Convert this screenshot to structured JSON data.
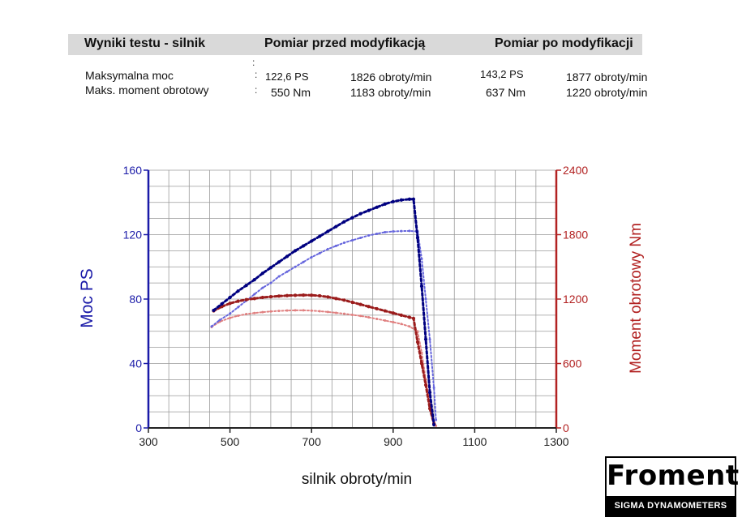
{
  "table": {
    "headers": [
      "Wyniki testu - silnik",
      "Pomiar przed modyfikacją",
      "Pomiar po modyfikacji"
    ],
    "rows": [
      {
        "label": "Maksymalna moc",
        "before_value": "122,6 PS",
        "before_rpm": "1826 obroty/min",
        "after_value": "143,2 PS",
        "after_rpm": "1877 obroty/min"
      },
      {
        "label": "Maks. moment obrotowy",
        "before_value": "550 Nm",
        "before_rpm": "1183 obroty/min",
        "after_value": "637 Nm",
        "after_rpm": "1220 obroty/min"
      }
    ]
  },
  "chart_data": {
    "type": "scatter",
    "xlabel": "silnik obroty/min",
    "ylabel": "Moc PS",
    "y2label": "Moment obrotowy Nm",
    "xlim": [
      300,
      1300
    ],
    "ylim": [
      0,
      160
    ],
    "y2lim": [
      0,
      2400
    ],
    "xticks": [
      "300",
      "500",
      "700",
      "900",
      "1100",
      "1300"
    ],
    "yticks": [
      "0",
      "40",
      "80",
      "120",
      "160"
    ],
    "y2ticks": [
      "0",
      "600",
      "1200",
      "1800",
      "2400"
    ],
    "grid": true,
    "colors": {
      "power_after": "#000080",
      "power_before": "#6666dd",
      "torque_after": "#9b1c1c",
      "torque_before": "#e08080",
      "left_axis": "#1a1aa8",
      "right_axis": "#b22222"
    },
    "series": [
      {
        "key": "power_after",
        "axis": "left",
        "x": [
          460,
          480,
          500,
          520,
          540,
          560,
          580,
          600,
          620,
          640,
          660,
          680,
          700,
          720,
          740,
          760,
          780,
          800,
          820,
          840,
          860,
          880,
          900,
          920,
          940,
          950,
          960,
          970,
          980,
          990,
          1000
        ],
        "y": [
          73,
          77,
          81,
          85,
          88.5,
          92,
          96,
          99.5,
          103,
          106.5,
          110,
          113,
          116,
          119,
          122,
          125,
          128,
          130.5,
          133,
          135,
          137,
          139,
          140.5,
          141.5,
          142,
          142,
          118,
          88,
          55,
          22,
          2
        ]
      },
      {
        "key": "power_before",
        "axis": "left",
        "x": [
          455,
          475,
          500,
          520,
          540,
          560,
          580,
          600,
          620,
          640,
          660,
          680,
          700,
          720,
          740,
          760,
          780,
          800,
          820,
          840,
          860,
          880,
          900,
          920,
          940,
          960,
          970,
          980,
          990,
          1000,
          1005
        ],
        "y": [
          63,
          67,
          71,
          75,
          79,
          83,
          87,
          90,
          94,
          97,
          100,
          103,
          106,
          108.5,
          111,
          113,
          115,
          116.5,
          118,
          119.5,
          120.5,
          121.5,
          122,
          122.2,
          122.3,
          122,
          105,
          80,
          55,
          25,
          5
        ]
      },
      {
        "key": "torque_after",
        "axis": "right",
        "x": [
          460,
          480,
          500,
          520,
          540,
          560,
          580,
          600,
          620,
          640,
          660,
          680,
          700,
          720,
          740,
          760,
          780,
          800,
          820,
          840,
          860,
          880,
          900,
          920,
          940,
          950,
          960,
          970,
          980,
          990,
          1000
        ],
        "y": [
          1090,
          1130,
          1160,
          1180,
          1195,
          1205,
          1215,
          1222,
          1228,
          1232,
          1235,
          1237,
          1236,
          1230,
          1220,
          1205,
          1190,
          1170,
          1150,
          1130,
          1110,
          1090,
          1070,
          1050,
          1030,
          1020,
          800,
          600,
          400,
          180,
          40
        ]
      },
      {
        "key": "torque_before",
        "axis": "right",
        "x": [
          455,
          475,
          500,
          520,
          540,
          560,
          580,
          600,
          620,
          640,
          660,
          680,
          700,
          720,
          740,
          760,
          780,
          800,
          820,
          840,
          860,
          880,
          900,
          920,
          940,
          960,
          970,
          980,
          990,
          1000,
          1005
        ],
        "y": [
          940,
          990,
          1025,
          1045,
          1060,
          1070,
          1078,
          1085,
          1090,
          1093,
          1095,
          1095,
          1092,
          1087,
          1080,
          1072,
          1063,
          1053,
          1043,
          1030,
          1015,
          1000,
          985,
          968,
          945,
          900,
          700,
          450,
          230,
          60,
          20
        ]
      }
    ]
  },
  "logo": {
    "name": "Froment",
    "tagline": "SIGMA DYNAMOMETERS"
  }
}
